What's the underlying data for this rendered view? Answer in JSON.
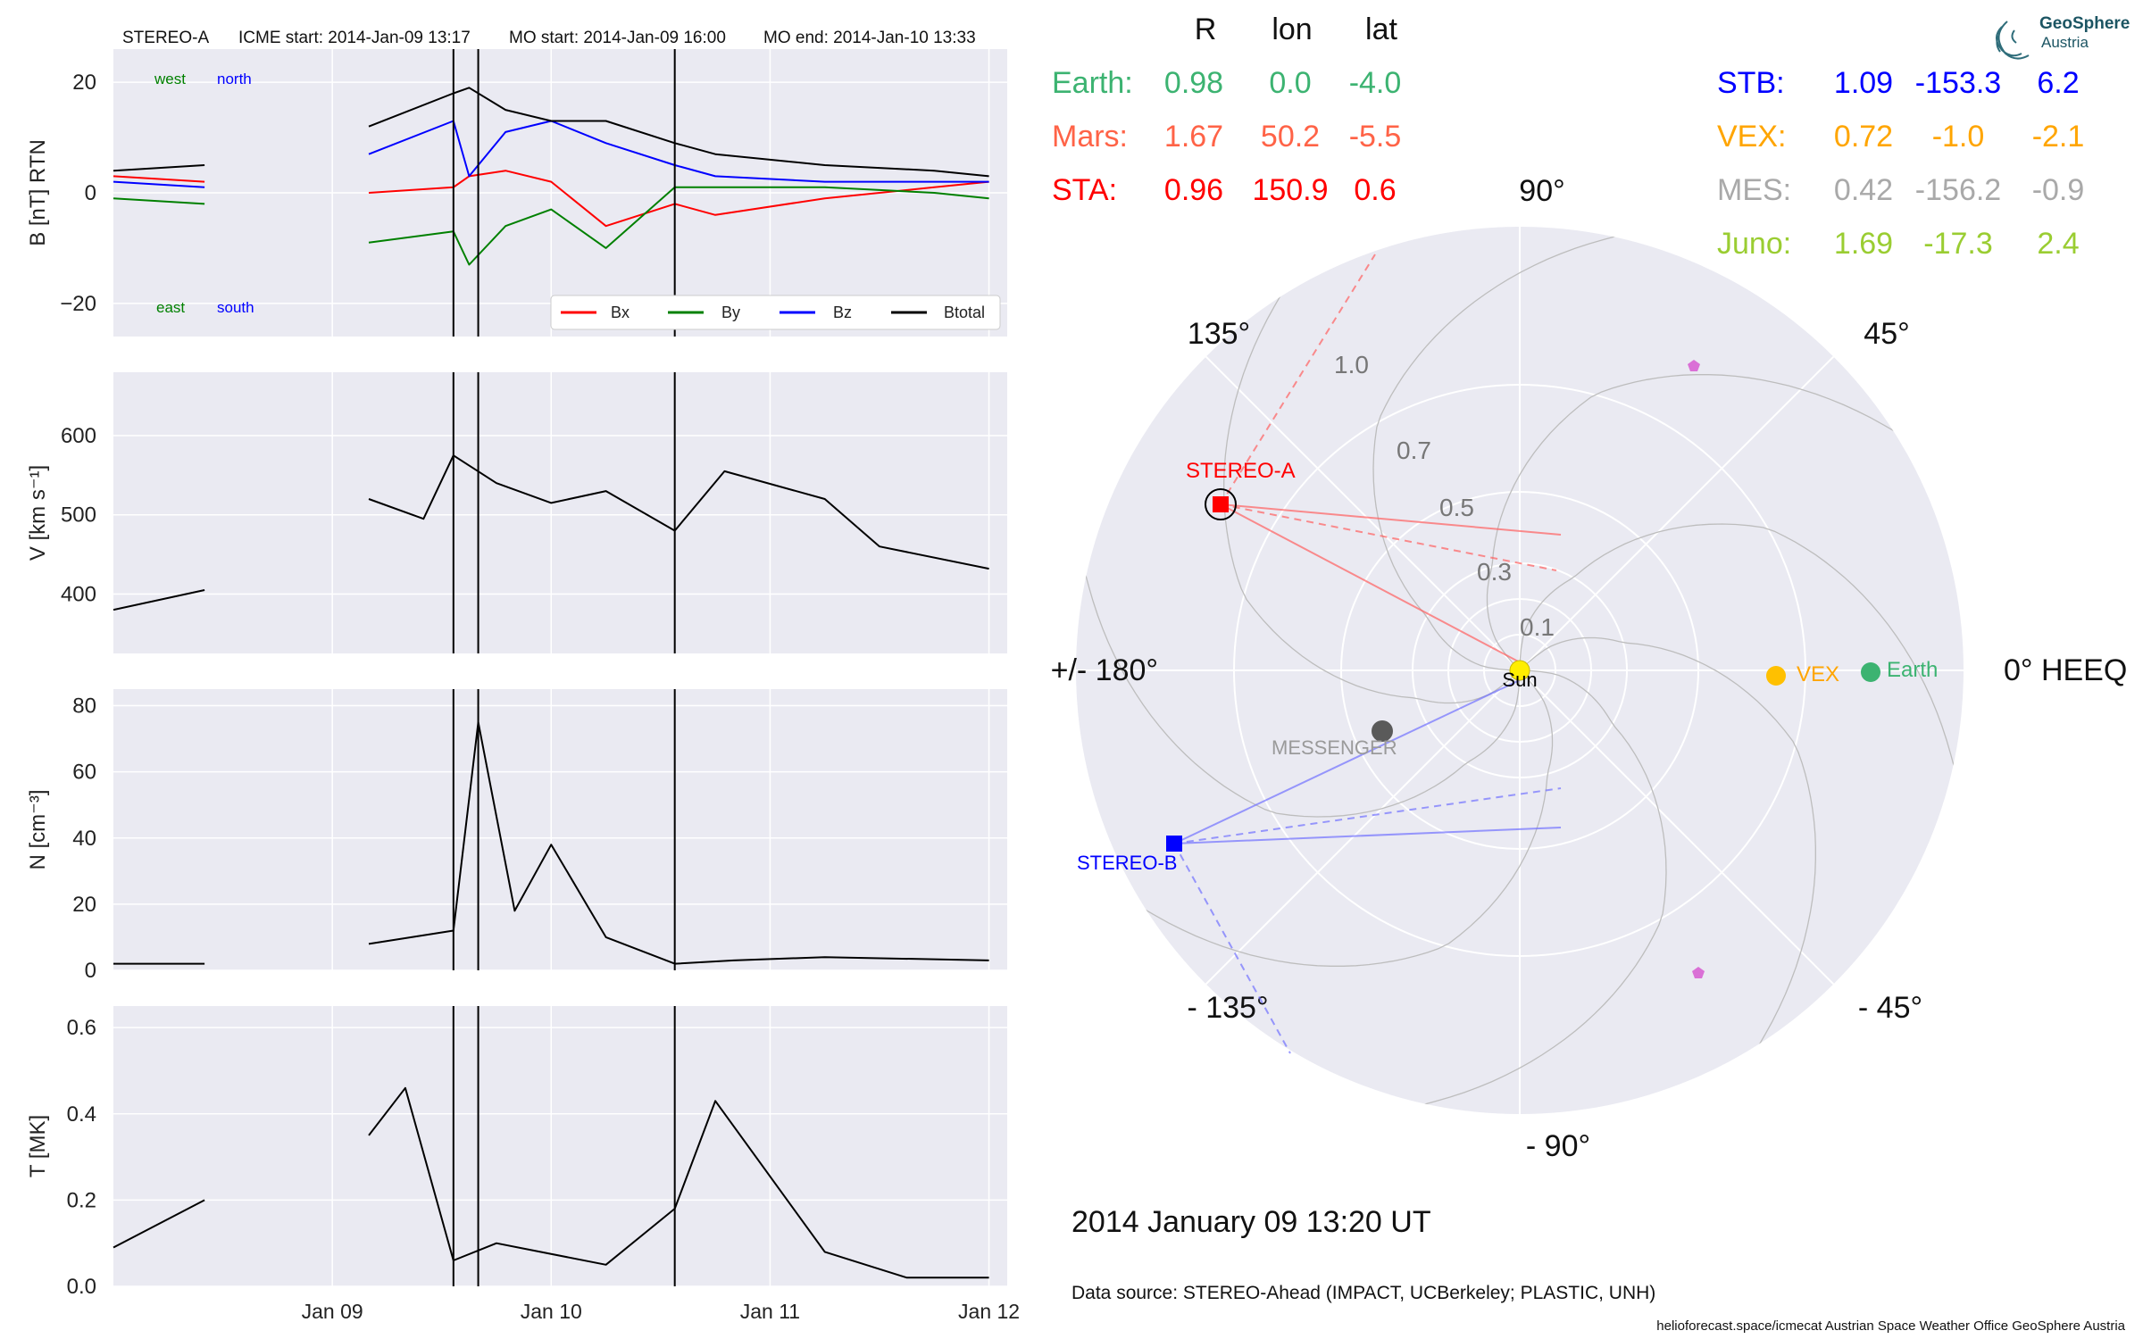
{
  "header": {
    "spacecraft": "STEREO-A",
    "icme_start": "ICME start: 2014-Jan-09 13:17",
    "mo_start": "MO start: 2014-Jan-09 16:00",
    "mo_end": "MO end: 2014-Jan-10 13:33"
  },
  "timeseries": {
    "x_ticks": [
      "Jan 09",
      "Jan 10",
      "Jan 11",
      "Jan 12"
    ],
    "event_lines": [
      "2014-01-09 13:17",
      "2014-01-09 16:00",
      "2014-01-10 13:33"
    ],
    "panels": {
      "b": {
        "ylabel": "B [nT] RTN",
        "ylim": [
          -26,
          26
        ],
        "yticks": [
          -20,
          0,
          20
        ],
        "ytick_labels": [
          "−20",
          "0",
          "20"
        ],
        "corner_labels": {
          "west": "west",
          "north": "north",
          "east": "east",
          "south": "south"
        },
        "legend": [
          {
            "label": "Bx",
            "color": "#ff0000"
          },
          {
            "label": "By",
            "color": "#008000"
          },
          {
            "label": "Bz",
            "color": "#0000ff"
          },
          {
            "label": "Btotal",
            "color": "#000000"
          }
        ]
      },
      "v": {
        "ylabel": "V [km s⁻¹]",
        "ylim": [
          325,
          680
        ],
        "yticks": [
          400,
          500,
          600
        ],
        "ytick_labels": [
          "400",
          "500",
          "600"
        ]
      },
      "n": {
        "ylabel": "N [cm⁻³]",
        "ylim": [
          0,
          85
        ],
        "yticks": [
          0,
          20,
          40,
          60,
          80
        ],
        "ytick_labels": [
          "0",
          "20",
          "40",
          "60",
          "80"
        ]
      },
      "t": {
        "ylabel": "T [MK]",
        "ylim": [
          0,
          0.65
        ],
        "yticks": [
          0,
          0.2,
          0.4,
          0.6
        ],
        "ytick_labels": [
          "0.0",
          "0.2",
          "0.4",
          "0.6"
        ]
      }
    }
  },
  "chart_data": [
    {
      "type": "line",
      "ylabel": "B [nT] RTN",
      "x": [
        "2014-01-08 00:00",
        "2014-01-08 10:00",
        "2014-01-09 04:00",
        "2014-01-09 13:17",
        "2014-01-09 15:00",
        "2014-01-09 19:00",
        "2014-01-10 00:00",
        "2014-01-10 06:00",
        "2014-01-10 13:33",
        "2014-01-10 18:00",
        "2014-01-11 06:00",
        "2014-01-11 18:00",
        "2014-01-12 00:00"
      ],
      "series": [
        {
          "name": "Bx",
          "values": [
            3,
            2,
            0,
            1,
            3,
            4,
            2,
            -6,
            -2,
            -4,
            -1,
            1,
            2
          ]
        },
        {
          "name": "By",
          "values": [
            -1,
            -2,
            -9,
            -7,
            -13,
            -6,
            -3,
            -10,
            1,
            1,
            1,
            0,
            -1
          ]
        },
        {
          "name": "Bz",
          "values": [
            2,
            1,
            7,
            13,
            3,
            11,
            13,
            9,
            5,
            3,
            2,
            2,
            2
          ]
        },
        {
          "name": "Btotal",
          "values": [
            4,
            5,
            12,
            18,
            19,
            15,
            13,
            13,
            9,
            7,
            5,
            4,
            3
          ]
        }
      ]
    },
    {
      "type": "line",
      "ylabel": "V [km s⁻¹]",
      "x": [
        "2014-01-08 00:00",
        "2014-01-08 10:00",
        "2014-01-09 04:00",
        "2014-01-09 10:00",
        "2014-01-09 13:17",
        "2014-01-09 18:00",
        "2014-01-10 00:00",
        "2014-01-10 06:00",
        "2014-01-10 13:33",
        "2014-01-10 19:00",
        "2014-01-11 06:00",
        "2014-01-11 12:00",
        "2014-01-12 00:00"
      ],
      "values": [
        380,
        405,
        520,
        495,
        575,
        540,
        515,
        530,
        480,
        555,
        520,
        460,
        432
      ]
    },
    {
      "type": "line",
      "ylabel": "N [cm⁻³]",
      "x": [
        "2014-01-08 00:00",
        "2014-01-08 10:00",
        "2014-01-09 04:00",
        "2014-01-09 13:17",
        "2014-01-09 16:00",
        "2014-01-09 20:00",
        "2014-01-10 00:00",
        "2014-01-10 06:00",
        "2014-01-10 13:33",
        "2014-01-10 20:00",
        "2014-01-11 06:00",
        "2014-01-12 00:00"
      ],
      "values": [
        2,
        2,
        8,
        12,
        75,
        18,
        38,
        10,
        2,
        3,
        4,
        3
      ]
    },
    {
      "type": "line",
      "ylabel": "T [MK]",
      "x": [
        "2014-01-08 00:00",
        "2014-01-08 10:00",
        "2014-01-09 04:00",
        "2014-01-09 08:00",
        "2014-01-09 13:17",
        "2014-01-09 18:00",
        "2014-01-10 06:00",
        "2014-01-10 13:33",
        "2014-01-10 18:00",
        "2014-01-11 06:00",
        "2014-01-11 15:00",
        "2014-01-12 00:00"
      ],
      "values": [
        0.09,
        0.2,
        0.35,
        0.46,
        0.06,
        0.1,
        0.05,
        0.18,
        0.43,
        0.08,
        0.02,
        0.02
      ]
    },
    {
      "type": "scatter",
      "title": "0° HEEQ",
      "positions": [
        {
          "name": "Sun",
          "r": 0.0,
          "lon": 0.0,
          "color": "#ffee00"
        },
        {
          "name": "Earth",
          "r": 0.98,
          "lon": 0.0,
          "color": "#3cb371"
        },
        {
          "name": "VEX",
          "r": 0.72,
          "lon": -1.0,
          "color": "#ffc000"
        },
        {
          "name": "MESSENGER",
          "r": 0.42,
          "lon": -156.2,
          "color": "#5a5a5a"
        },
        {
          "name": "STEREO-A",
          "r": 0.96,
          "lon": 150.9,
          "color": "#ff0000"
        },
        {
          "name": "STEREO-B",
          "r": 1.09,
          "lon": -153.3,
          "color": "#0000ff"
        },
        {
          "name": "Mars",
          "r": 1.67,
          "lon": 50.2,
          "color": "#e377c2"
        },
        {
          "name": "Juno",
          "r": 1.69,
          "lon": -17.3,
          "color": "#e377c2"
        }
      ],
      "angle_labels": [
        "90°",
        "45°",
        "0° HEEQ",
        "- 45°",
        "- 90°",
        "- 135°",
        "+/- 180°",
        "135°"
      ],
      "radial_ticks": [
        "0.1",
        "0.3",
        "0.5",
        "0.7",
        "1.0"
      ]
    }
  ],
  "polar_labels": {
    "sun": "Sun",
    "earth": "Earth",
    "vex": "VEX",
    "messenger": "MESSENGER",
    "stereo_a": "STEREO-A",
    "stereo_b": "STEREO-B"
  },
  "table": {
    "headers": [
      "R",
      "lon",
      "lat"
    ],
    "left": [
      {
        "name": "Earth:",
        "r": "0.98",
        "lon": "0.0",
        "lat": "-4.0",
        "color": "#3cb371"
      },
      {
        "name": "Mars:",
        "r": "1.67",
        "lon": "50.2",
        "lat": "-5.5",
        "color": "#ff6347"
      },
      {
        "name": "STA:",
        "r": "0.96",
        "lon": "150.9",
        "lat": "0.6",
        "color": "#ff0000"
      }
    ],
    "right": [
      {
        "name": "STB:",
        "r": "1.09",
        "lon": "-153.3",
        "lat": "6.2",
        "color": "#0000ff"
      },
      {
        "name": "VEX:",
        "r": "0.72",
        "lon": "-1.0",
        "lat": "-2.1",
        "color": "#ffa500"
      },
      {
        "name": "MES:",
        "r": "0.42",
        "lon": "-156.2",
        "lat": "-0.9",
        "color": "#a9a9a9"
      },
      {
        "name": "Juno:",
        "r": "1.69",
        "lon": "-17.3",
        "lat": "2.4",
        "color": "#9acd32"
      }
    ]
  },
  "logo": {
    "line1": "GeoSphere",
    "line2": "Austria"
  },
  "footer": {
    "date": "2014 January 09  13:20 UT",
    "data_source": "Data source: STEREO-Ahead (IMPACT, UCBerkeley; PLASTIC, UNH)",
    "credit": "helioforecast.space/icmecat   Austrian Space Weather Office   GeoSphere Austria"
  }
}
